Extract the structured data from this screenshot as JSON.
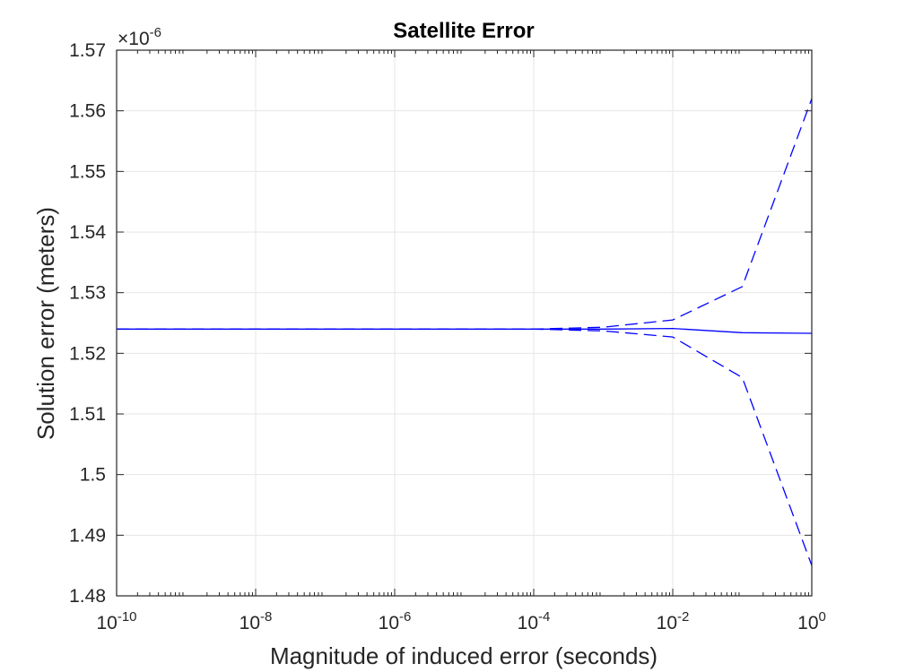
{
  "chart_data": {
    "type": "line",
    "title": "Satellite Error",
    "xlabel": "Magnitude of induced error (seconds)",
    "ylabel": "Solution error (meters)",
    "xscale": "log",
    "xlim": [
      1e-10,
      1
    ],
    "ylim": [
      1.48e-06,
      1.57e-06
    ],
    "y_multiplier_label": "×10",
    "y_multiplier_exponent": "-6",
    "grid": true,
    "line_color": "#0000ff",
    "x_ticks": [
      {
        "base": "10",
        "exp": "-10",
        "value": 1e-10
      },
      {
        "base": "10",
        "exp": "-8",
        "value": 1e-08
      },
      {
        "base": "10",
        "exp": "-6",
        "value": 1e-06
      },
      {
        "base": "10",
        "exp": "-4",
        "value": 0.0001
      },
      {
        "base": "10",
        "exp": "-2",
        "value": 0.01
      },
      {
        "base": "10",
        "exp": "0",
        "value": 1
      }
    ],
    "y_ticks": [
      {
        "label": "1.48",
        "value": 1.48
      },
      {
        "label": "1.49",
        "value": 1.49
      },
      {
        "label": "1.5",
        "value": 1.5
      },
      {
        "label": "1.51",
        "value": 1.51
      },
      {
        "label": "1.52",
        "value": 1.52
      },
      {
        "label": "1.53",
        "value": 1.53
      },
      {
        "label": "1.54",
        "value": 1.54
      },
      {
        "label": "1.55",
        "value": 1.55
      },
      {
        "label": "1.56",
        "value": 1.56
      },
      {
        "label": "1.57",
        "value": 1.57
      }
    ],
    "x": [
      1e-10,
      1e-09,
      1e-08,
      1e-07,
      1e-06,
      1e-05,
      0.0001,
      0.001,
      0.01,
      0.1,
      1
    ],
    "series": [
      {
        "style": "solid",
        "values": [
          1.524,
          1.524,
          1.524,
          1.524,
          1.524,
          1.524,
          1.524,
          1.524,
          1.5241,
          1.5234,
          1.5233
        ]
      },
      {
        "style": "dashed",
        "values": [
          1.524,
          1.524,
          1.524,
          1.524,
          1.524,
          1.524,
          1.524,
          1.5243,
          1.5255,
          1.531,
          1.562
        ]
      },
      {
        "style": "dashed",
        "values": [
          1.524,
          1.524,
          1.524,
          1.524,
          1.524,
          1.524,
          1.524,
          1.5237,
          1.5227,
          1.516,
          1.485
        ]
      }
    ]
  }
}
